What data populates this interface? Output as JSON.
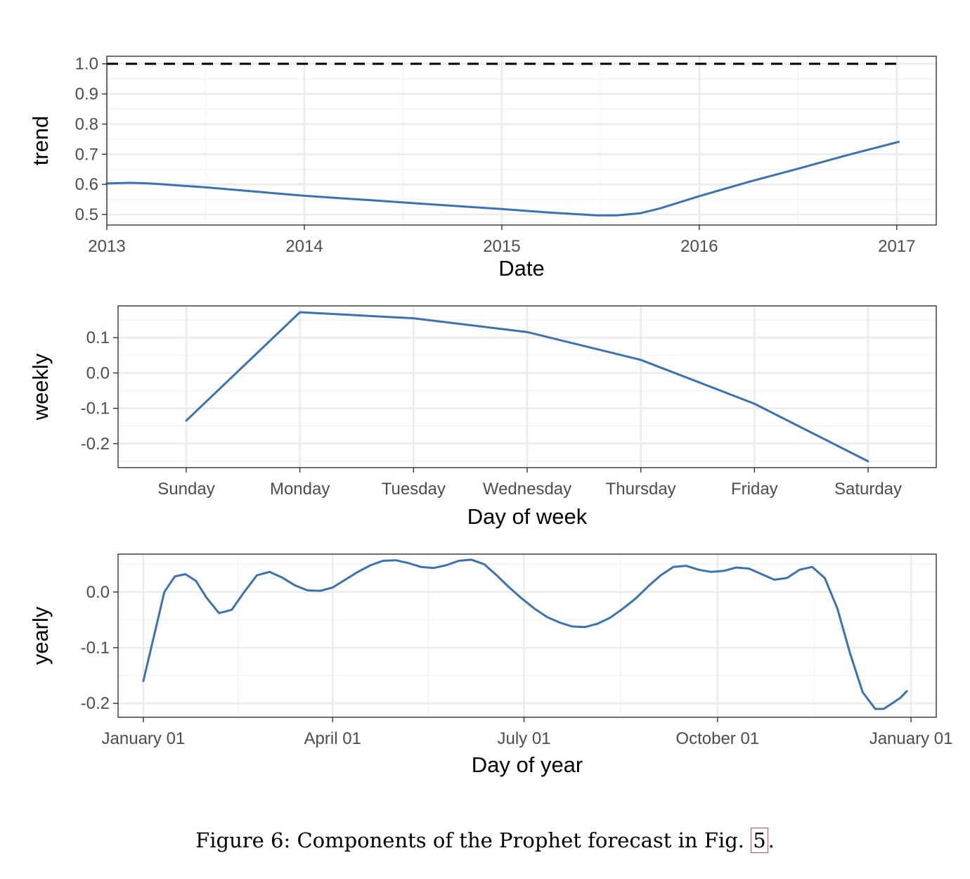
{
  "colors": {
    "line": "#3a73b0",
    "cap": "#000000",
    "grid_major": "#ebebeb",
    "grid_minor": "#f2f2f2",
    "panel_border": "#333333"
  },
  "chart_data": [
    {
      "type": "line",
      "name": "trend-panel",
      "xlabel": "Date",
      "ylabel": "trend",
      "xlim": [
        2013,
        2017.2
      ],
      "ylim": [
        0.465,
        1.025
      ],
      "x_ticks": [
        2013,
        2014,
        2015,
        2016,
        2017
      ],
      "x_tick_labels": [
        "2013",
        "2014",
        "2015",
        "2016",
        "2017"
      ],
      "y_ticks": [
        0.5,
        0.6,
        0.7,
        0.8,
        0.9,
        1.0
      ],
      "y_tick_labels": [
        "0.5",
        "0.6",
        "0.7",
        "0.8",
        "0.9",
        "1.0"
      ],
      "series": [
        {
          "name": "trend",
          "style": "solid",
          "x": [
            2013.0,
            2013.12,
            2013.22,
            2013.5,
            2013.75,
            2014.0,
            2014.25,
            2014.5,
            2014.75,
            2015.0,
            2015.25,
            2015.48,
            2015.58,
            2015.7,
            2015.8,
            2016.0,
            2016.25,
            2016.5,
            2016.75,
            2017.01
          ],
          "y": [
            0.603,
            0.605,
            0.603,
            0.59,
            0.576,
            0.562,
            0.551,
            0.54,
            0.529,
            0.518,
            0.506,
            0.497,
            0.497,
            0.504,
            0.52,
            0.561,
            0.608,
            0.652,
            0.697,
            0.741
          ]
        },
        {
          "name": "cap",
          "style": "dashed",
          "x": [
            2013.0,
            2017.01
          ],
          "y": [
            1.0,
            1.0
          ]
        }
      ]
    },
    {
      "type": "line",
      "name": "weekly-panel",
      "xlabel": "Day of week",
      "ylabel": "weekly",
      "categories": [
        "Sunday",
        "Monday",
        "Tuesday",
        "Wednesday",
        "Thursday",
        "Friday",
        "Saturday"
      ],
      "y_ticks": [
        -0.2,
        -0.1,
        0.0,
        0.1
      ],
      "y_tick_labels": [
        "-0.2",
        "-0.1",
        "0.0",
        "0.1"
      ],
      "ylim": [
        -0.268,
        0.19
      ],
      "series": [
        {
          "name": "weekly",
          "values": [
            -0.135,
            0.172,
            0.155,
            0.116,
            0.037,
            -0.087,
            -0.25
          ]
        }
      ]
    },
    {
      "type": "line",
      "name": "yearly-panel",
      "xlabel": "Day of year",
      "ylabel": "yearly",
      "xlim": [
        -12,
        377
      ],
      "ylim": [
        -0.225,
        0.068
      ],
      "x_ticks": [
        0,
        90,
        181,
        273,
        365
      ],
      "x_tick_labels": [
        "January 01",
        "April 01",
        "July 01",
        "October 01",
        "January 01"
      ],
      "y_ticks": [
        -0.2,
        -0.1,
        0.0
      ],
      "y_tick_labels": [
        "-0.2",
        "-0.1",
        "0.0"
      ],
      "series": [
        {
          "name": "yearly",
          "x": [
            0,
            5,
            10,
            15,
            20,
            25,
            30,
            36,
            42,
            48,
            54,
            60,
            66,
            72,
            78,
            84,
            90,
            96,
            102,
            108,
            114,
            120,
            126,
            132,
            138,
            144,
            150,
            156,
            162,
            168,
            174,
            180,
            186,
            192,
            198,
            204,
            210,
            216,
            222,
            228,
            234,
            240,
            246,
            252,
            258,
            264,
            270,
            276,
            282,
            288,
            294,
            300,
            306,
            312,
            318,
            324,
            330,
            336,
            342,
            348,
            352,
            356,
            360,
            363
          ],
          "y": [
            -0.16,
            -0.08,
            0.0,
            0.028,
            0.032,
            0.02,
            -0.01,
            -0.038,
            -0.032,
            0.0,
            0.03,
            0.036,
            0.026,
            0.012,
            0.003,
            0.002,
            0.008,
            0.022,
            0.036,
            0.048,
            0.056,
            0.057,
            0.052,
            0.045,
            0.043,
            0.048,
            0.056,
            0.058,
            0.05,
            0.03,
            0.008,
            -0.012,
            -0.03,
            -0.045,
            -0.055,
            -0.062,
            -0.063,
            -0.057,
            -0.046,
            -0.03,
            -0.012,
            0.01,
            0.03,
            0.045,
            0.047,
            0.04,
            0.036,
            0.038,
            0.044,
            0.042,
            0.032,
            0.022,
            0.025,
            0.04,
            0.045,
            0.025,
            -0.03,
            -0.11,
            -0.18,
            -0.21,
            -0.21,
            -0.2,
            -0.19,
            -0.178
          ]
        }
      ]
    }
  ],
  "caption": {
    "prefix": "Figure 6:  Components of the Prophet forecast in Fig. ",
    "ref": "5",
    "suffix": "."
  }
}
